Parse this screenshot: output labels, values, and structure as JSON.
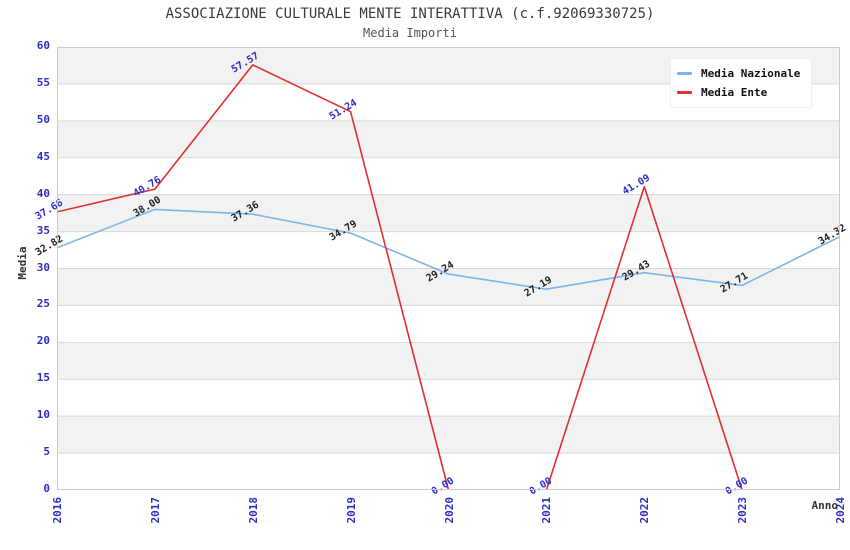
{
  "chart_data": {
    "type": "line",
    "title": "ASSOCIAZIONE CULTURALE MENTE INTERATTIVA (c.f.92069330725)",
    "subtitle": "Media Importi",
    "xlabel": "Anno",
    "ylabel": "Media",
    "categories": [
      "2016",
      "2017",
      "2018",
      "2019",
      "2020",
      "2021",
      "2022",
      "2023",
      "2024"
    ],
    "ylim": [
      0,
      60
    ],
    "ytick_step": 5,
    "ytick_labels": [
      "0",
      "5",
      "10",
      "15",
      "20",
      "25",
      "30",
      "35",
      "40",
      "45",
      "50",
      "55",
      "60"
    ],
    "grid": true,
    "legend_position": "top-right",
    "series": [
      {
        "name": "Media Nazionale",
        "color": "#7cb5ec",
        "label_color": "#222222",
        "values": [
          32.82,
          38.0,
          37.36,
          34.79,
          29.24,
          27.19,
          29.43,
          27.71,
          34.32
        ],
        "labels": [
          "32.82",
          "38.00",
          "37.36",
          "34.79",
          "29.24",
          "27.19",
          "29.43",
          "27.71",
          "34.32"
        ]
      },
      {
        "name": "Media Ente",
        "color": "#e03030",
        "label_color": "#2d2dc8",
        "values": [
          37.66,
          40.76,
          57.57,
          51.24,
          0.0,
          0.0,
          41.09,
          0.0,
          null
        ],
        "labels": [
          "37.66",
          "40.76",
          "57.57",
          "51.24",
          "0.00",
          "0.00",
          "41.09",
          "0.00",
          null
        ]
      }
    ]
  },
  "colors": {
    "axis_tick": "#2d2dc8",
    "band": "#f2f2f2",
    "band_alt": "#ffffff",
    "gridline": "#d9d9d9",
    "plot_border": "#cccccc",
    "title": "#3a3a3a",
    "subtitle": "#555555",
    "axis_title": "#333333"
  }
}
